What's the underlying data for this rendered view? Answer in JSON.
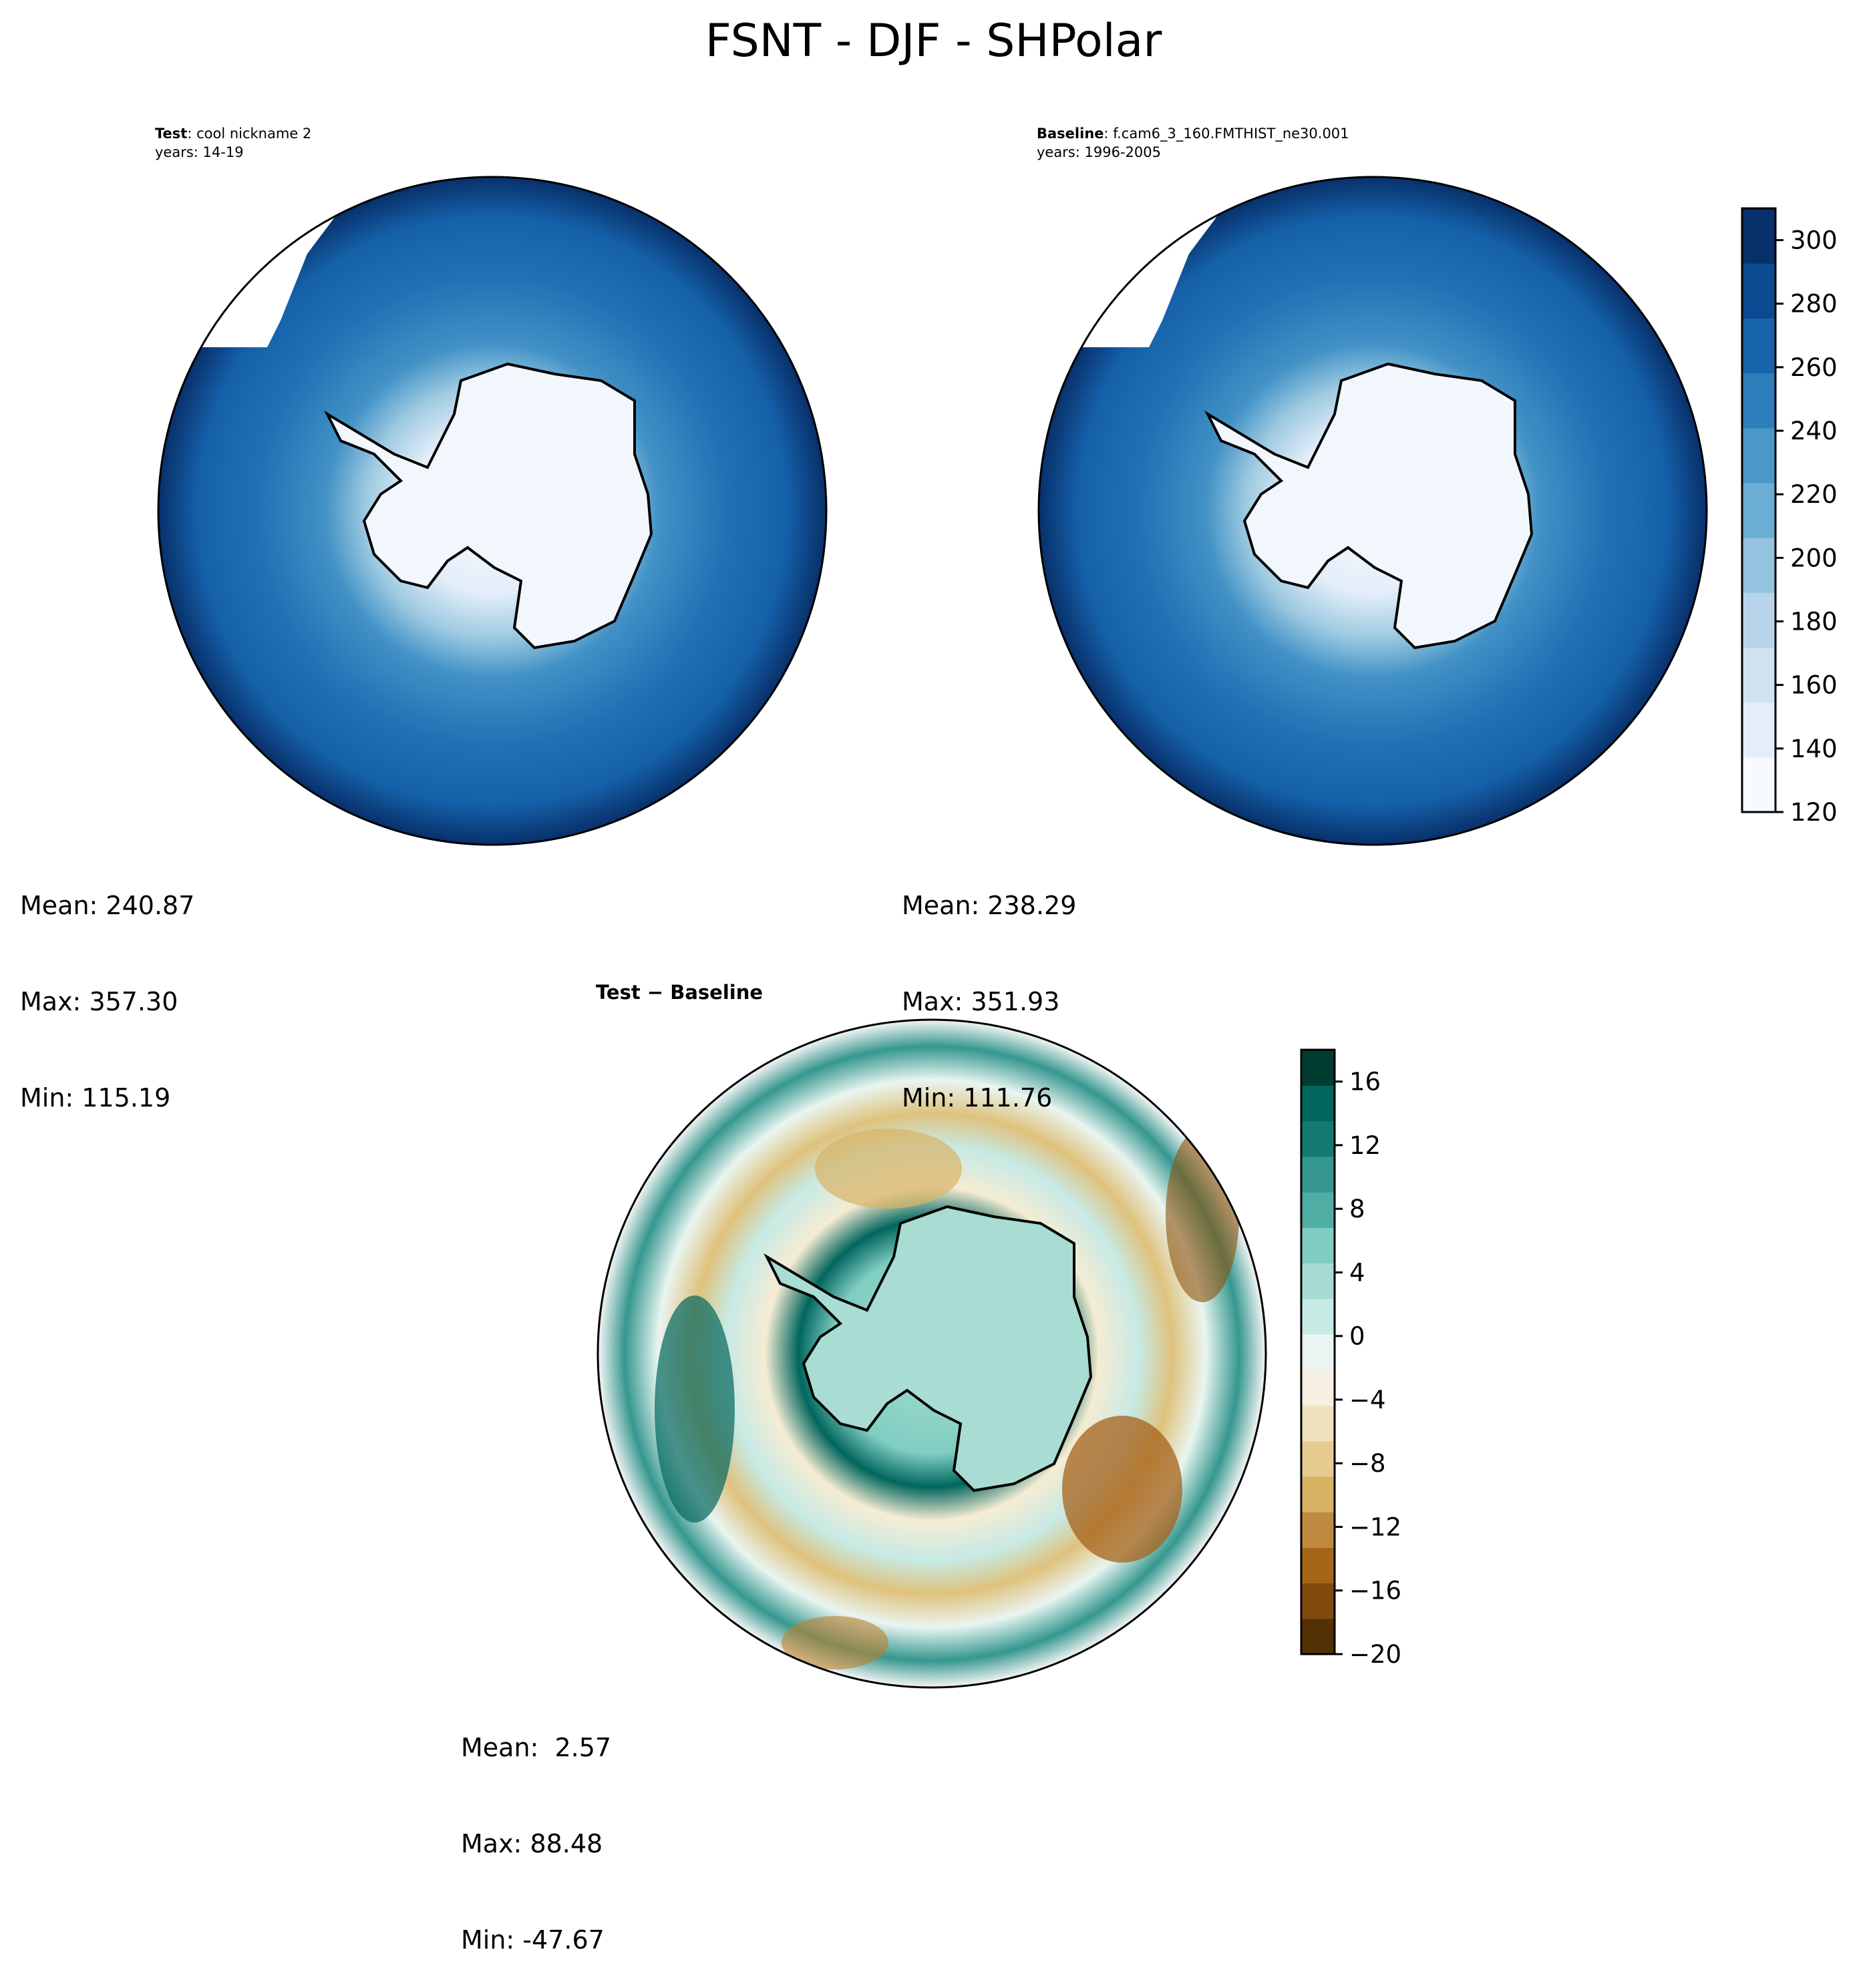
{
  "figure": {
    "title": "FSNT - DJF - SHPolar"
  },
  "panels": {
    "test": {
      "label_bold": "Test",
      "label_rest": ": cool nickname 2",
      "years": "years: 14-19",
      "stats": {
        "mean": "Mean: 240.87",
        "max": "Max: 357.30",
        "min": "Min: 115.19"
      }
    },
    "baseline": {
      "label_bold": "Baseline",
      "label_rest": ": f.cam6_3_160.FMTHIST_ne30.001",
      "years": "years: 1996-2005",
      "stats": {
        "mean": "Mean: 238.29",
        "max": "Max: 351.93",
        "min": "Min: 111.76"
      }
    },
    "diff": {
      "label": "Test − Baseline",
      "stats": {
        "mean": "Mean:  2.57",
        "max": "Max: 88.48",
        "min": "Min: -47.67"
      }
    }
  },
  "chart_data": [
    {
      "type": "heatmap",
      "projection": "south-polar-stereographic",
      "colormap": "Blues",
      "colorbar": {
        "range": [
          120,
          310
        ],
        "ticks": [
          120,
          140,
          160,
          180,
          200,
          220,
          240,
          260,
          280,
          300
        ],
        "tick_labels": [
          "120",
          "140",
          "160",
          "180",
          "200",
          "220",
          "240",
          "260",
          "280",
          "300"
        ]
      },
      "shared_by": [
        "test",
        "baseline"
      ]
    },
    {
      "type": "heatmap",
      "projection": "south-polar-stereographic",
      "colormap": "BrBG",
      "colorbar": {
        "range": [
          -20,
          18
        ],
        "ticks": [
          -20,
          -16,
          -12,
          -8,
          -4,
          0,
          4,
          8,
          12,
          16
        ],
        "tick_labels": [
          "−20",
          "−16",
          "−12",
          "−8",
          "−4",
          "0",
          "4",
          "8",
          "12",
          "16"
        ]
      },
      "shared_by": [
        "diff"
      ]
    }
  ]
}
